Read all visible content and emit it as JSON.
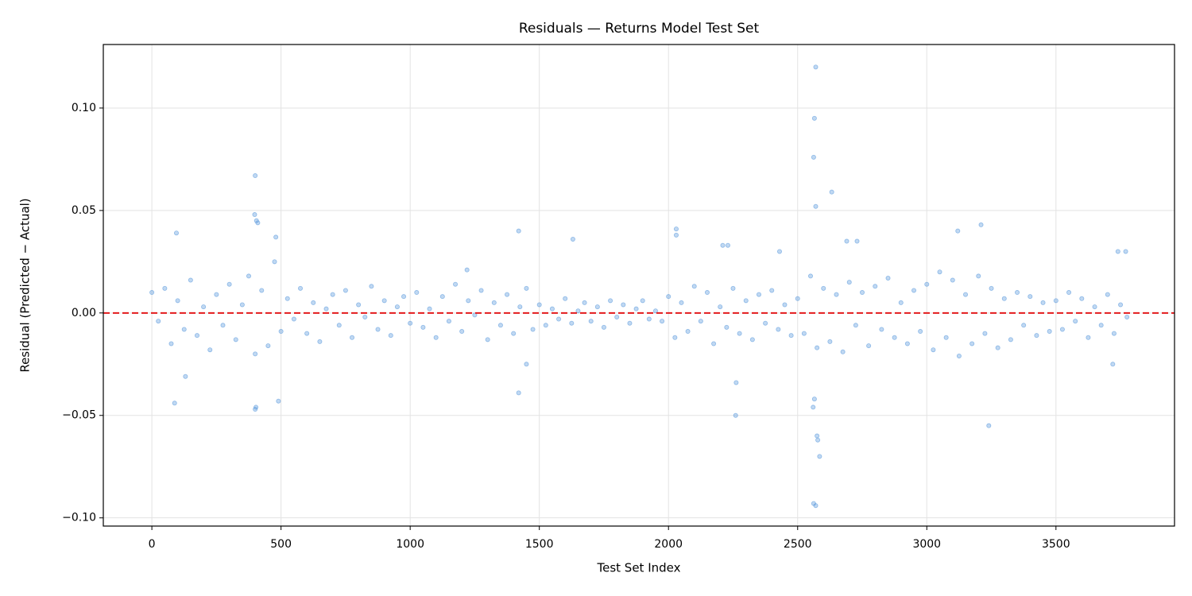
{
  "chart_data": {
    "type": "scatter",
    "title": "Residuals — Returns Model Test Set",
    "xlabel": "Test Set Index",
    "ylabel": "Residual (Predicted − Actual)",
    "color": "#4a90d9",
    "grid": true,
    "xlim": [
      -188,
      3959
    ],
    "ylim": [
      -0.104,
      0.131
    ],
    "xticks": [
      0,
      500,
      1000,
      1500,
      2000,
      2500,
      3000,
      3500
    ],
    "yticks": [
      {
        "value": -0.1,
        "label": "−0.10"
      },
      {
        "value": -0.05,
        "label": "−0.05"
      },
      {
        "value": 0,
        "label": "0.00"
      },
      {
        "value": 0.05,
        "label": "0.05"
      },
      {
        "value": 0.1,
        "label": "0.10"
      }
    ],
    "zero_line": {
      "y": 0,
      "color": "#e31a1c",
      "style": "dashed"
    },
    "x": [
      0,
      25,
      50,
      75,
      100,
      125,
      150,
      175,
      200,
      225,
      250,
      275,
      300,
      325,
      350,
      375,
      400,
      425,
      450,
      475,
      500,
      525,
      550,
      575,
      600,
      625,
      650,
      675,
      700,
      725,
      750,
      775,
      800,
      825,
      850,
      875,
      900,
      925,
      950,
      975,
      1000,
      1025,
      1050,
      1075,
      1100,
      1125,
      1150,
      1175,
      1200,
      1225,
      1250,
      1275,
      1300,
      1325,
      1350,
      1375,
      1400,
      1425,
      1450,
      1475,
      1500,
      1525,
      1550,
      1575,
      1600,
      1625,
      1650,
      1675,
      1700,
      1725,
      1750,
      1775,
      1800,
      1825,
      1850,
      1875,
      1900,
      1925,
      1950,
      1975,
      2000,
      2025,
      2050,
      2075,
      2100,
      2125,
      2150,
      2175,
      2200,
      2225,
      2250,
      2275,
      2300,
      2325,
      2350,
      2375,
      2400,
      2425,
      2450,
      2475,
      2500,
      2525,
      2550,
      2575,
      2600,
      2625,
      2650,
      2675,
      2700,
      2725,
      2750,
      2775,
      2800,
      2825,
      2850,
      2875,
      2900,
      2925,
      2950,
      2975,
      3000,
      3025,
      3050,
      3075,
      3100,
      3125,
      3150,
      3175,
      3200,
      3225,
      3250,
      3275,
      3300,
      3325,
      3350,
      3375,
      3400,
      3425,
      3450,
      3475,
      3500,
      3525,
      3550,
      3575,
      3600,
      3625,
      3650,
      3675,
      3700,
      3725,
      3750,
      3775,
      400,
      398,
      405,
      410,
      400,
      403,
      480,
      490,
      88,
      95,
      130,
      1420,
      1420,
      1630,
      2030,
      2030,
      2570,
      2565,
      2562,
      2632,
      2570,
      2575,
      2578,
      2585,
      2562,
      2570,
      2565,
      2560,
      2260,
      2262,
      3210,
      3120,
      3240,
      3740,
      3770,
      3720,
      2690,
      2730,
      1220,
      1450,
      2210,
      2230,
      2430
    ],
    "y": [
      0.01,
      -0.004,
      0.012,
      -0.015,
      0.006,
      -0.008,
      0.016,
      -0.011,
      0.003,
      -0.018,
      0.009,
      -0.006,
      0.014,
      -0.013,
      0.004,
      0.018,
      -0.02,
      0.011,
      -0.016,
      0.025,
      -0.009,
      0.007,
      -0.003,
      0.012,
      -0.01,
      0.005,
      -0.014,
      0.002,
      0.009,
      -0.006,
      0.011,
      -0.012,
      0.004,
      -0.002,
      0.013,
      -0.008,
      0.006,
      -0.011,
      0.003,
      0.008,
      -0.005,
      0.01,
      -0.007,
      0.002,
      -0.012,
      0.008,
      -0.004,
      0.014,
      -0.009,
      0.006,
      -0.001,
      0.011,
      -0.013,
      0.005,
      -0.006,
      0.009,
      -0.01,
      0.003,
      0.012,
      -0.008,
      0.004,
      -0.006,
      0.002,
      -0.003,
      0.007,
      -0.005,
      0.001,
      0.005,
      -0.004,
      0.003,
      -0.007,
      0.006,
      -0.002,
      0.004,
      -0.005,
      0.002,
      0.006,
      -0.003,
      0.001,
      -0.004,
      0.008,
      -0.012,
      0.005,
      -0.009,
      0.013,
      -0.004,
      0.01,
      -0.015,
      0.003,
      -0.007,
      0.012,
      -0.01,
      0.006,
      -0.013,
      0.009,
      -0.005,
      0.011,
      -0.008,
      0.004,
      -0.011,
      0.007,
      -0.01,
      0.018,
      -0.017,
      0.012,
      -0.014,
      0.009,
      -0.019,
      0.015,
      -0.006,
      0.01,
      -0.016,
      0.013,
      -0.008,
      0.017,
      -0.012,
      0.005,
      -0.015,
      0.011,
      -0.009,
      0.014,
      -0.018,
      0.02,
      -0.012,
      0.016,
      -0.021,
      0.009,
      -0.015,
      0.018,
      -0.01,
      0.012,
      -0.017,
      0.007,
      -0.013,
      0.01,
      -0.006,
      0.008,
      -0.011,
      0.005,
      -0.009,
      0.006,
      -0.008,
      0.01,
      -0.004,
      0.007,
      -0.012,
      0.003,
      -0.006,
      0.009,
      -0.01,
      0.004,
      -0.002,
      0.067,
      0.048,
      0.045,
      0.044,
      -0.047,
      -0.046,
      0.037,
      -0.043,
      -0.044,
      0.039,
      -0.031,
      0.04,
      -0.039,
      0.036,
      0.041,
      0.038,
      0.12,
      0.095,
      0.076,
      0.059,
      0.052,
      -0.06,
      -0.062,
      -0.07,
      -0.093,
      -0.094,
      -0.042,
      -0.046,
      -0.05,
      -0.034,
      0.043,
      0.04,
      -0.055,
      0.03,
      0.03,
      -0.025,
      0.035,
      0.035,
      0.021,
      -0.025,
      0.033,
      0.033,
      0.03
    ]
  }
}
